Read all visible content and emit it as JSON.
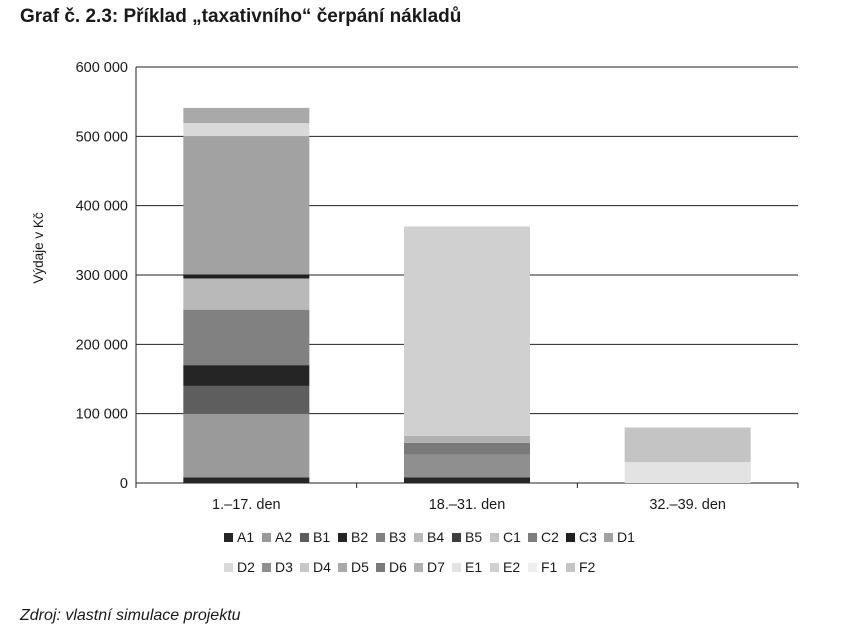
{
  "title": "Graf č. 2.3: Příklad „taxativního“ čerpání nákladů",
  "source": "Zdroj: vlastní simulace projektu",
  "chart_data": {
    "type": "bar",
    "stacked": true,
    "categories": [
      "1.–17. den",
      "18.–31. den",
      "32.–39. den"
    ],
    "ylabel": "Výdaje v Kč",
    "ylim": [
      0,
      600000
    ],
    "yticks": [
      0,
      100000,
      200000,
      300000,
      400000,
      500000,
      600000
    ],
    "ytick_labels": [
      "0",
      "100 000",
      "200 000",
      "300 000",
      "400 000",
      "500 000",
      "600 000"
    ],
    "grid": true,
    "legend_position": "bottom",
    "series": [
      {
        "name": "A1",
        "color": "#262626",
        "values": [
          8000,
          8000,
          0
        ]
      },
      {
        "name": "A2",
        "color": "#9a9a9a",
        "values": [
          92000,
          0,
          0
        ]
      },
      {
        "name": "B1",
        "color": "#5e5e5e",
        "values": [
          40000,
          0,
          0
        ]
      },
      {
        "name": "B2",
        "color": "#252525",
        "values": [
          30000,
          0,
          0
        ]
      },
      {
        "name": "B3",
        "color": "#818181",
        "values": [
          80000,
          0,
          0
        ]
      },
      {
        "name": "B4",
        "color": "#b9b9b9",
        "values": [
          45000,
          0,
          0
        ]
      },
      {
        "name": "B5",
        "color": "#3d3d3d",
        "values": [
          0,
          0,
          0
        ]
      },
      {
        "name": "C1",
        "color": "#c3c3c3",
        "values": [
          0,
          0,
          0
        ]
      },
      {
        "name": "C2",
        "color": "#7d7d7d",
        "values": [
          0,
          0,
          0
        ]
      },
      {
        "name": "C3",
        "color": "#202020",
        "values": [
          6000,
          0,
          0
        ]
      },
      {
        "name": "D1",
        "color": "#a2a2a2",
        "values": [
          199000,
          0,
          0
        ]
      },
      {
        "name": "D2",
        "color": "#d9d9d9",
        "values": [
          19000,
          0,
          0
        ]
      },
      {
        "name": "D3",
        "color": "#8f8f8f",
        "values": [
          0,
          33000,
          0
        ]
      },
      {
        "name": "D4",
        "color": "#c8c8c8",
        "values": [
          0,
          0,
          0
        ]
      },
      {
        "name": "D5",
        "color": "#a9a9a9",
        "values": [
          22000,
          0,
          0
        ]
      },
      {
        "name": "D6",
        "color": "#7a7a7a",
        "values": [
          0,
          17000,
          0
        ]
      },
      {
        "name": "D7",
        "color": "#b1b1b1",
        "values": [
          0,
          10000,
          0
        ]
      },
      {
        "name": "E1",
        "color": "#e3e3e3",
        "values": [
          0,
          0,
          30000
        ]
      },
      {
        "name": "E2",
        "color": "#d0d0d0",
        "values": [
          0,
          302000,
          0
        ]
      },
      {
        "name": "F1",
        "color": "#eeeeee",
        "values": [
          0,
          0,
          0
        ]
      },
      {
        "name": "F2",
        "color": "#c4c4c4",
        "values": [
          0,
          0,
          50000
        ]
      }
    ],
    "extra_segments_note": ""
  }
}
